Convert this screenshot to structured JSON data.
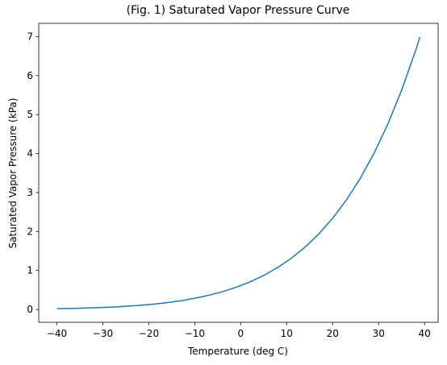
{
  "chart_data": {
    "type": "line",
    "title": "(Fig. 1) Saturated Vapor Pressure Curve",
    "x_label": "Temperature (deg C)",
    "y_label": "Saturated Vapor Pressure (kPa)",
    "x": [
      -40,
      -37,
      -34,
      -31,
      -28,
      -25,
      -22,
      -19,
      -16,
      -13,
      -10,
      -7,
      -4,
      -1,
      2,
      5,
      8,
      11,
      14,
      17,
      20,
      23,
      26,
      29,
      32,
      35,
      38,
      39
    ],
    "series": [
      {
        "color": "#1f77b4",
        "values": [
          0.018,
          0.025,
          0.034,
          0.046,
          0.061,
          0.08,
          0.105,
          0.136,
          0.175,
          0.224,
          0.286,
          0.361,
          0.454,
          0.568,
          0.706,
          0.872,
          1.073,
          1.313,
          1.599,
          1.938,
          2.338,
          2.81,
          3.361,
          4.006,
          4.755,
          5.623,
          6.625,
          6.992
        ]
      }
    ],
    "xlim": [
      -43.95,
      42.95
    ],
    "ylim": [
      -0.33,
      7.34
    ],
    "xticks": [
      {
        "value": -40,
        "label": "−40"
      },
      {
        "value": -30,
        "label": "−30"
      },
      {
        "value": -20,
        "label": "−20"
      },
      {
        "value": -10,
        "label": "−10"
      },
      0,
      10,
      20,
      30,
      40
    ],
    "yticks": [
      0,
      1,
      2,
      3,
      4,
      5,
      6,
      7
    ],
    "grid": false
  }
}
